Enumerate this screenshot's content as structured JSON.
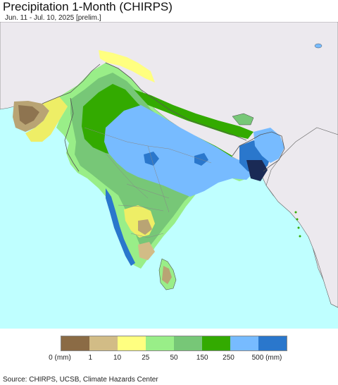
{
  "header": {
    "title": "Precipitation 1-Month (CHIRPS)",
    "subtitle": "Jun. 11 - Jul. 10, 2025 [prelim.]"
  },
  "map": {
    "ocean_color": "#bfffff",
    "land_outside_color": "#ece9ee",
    "border_color": "#555555"
  },
  "legend": {
    "swatches": [
      "#8b6b45",
      "#d2bc86",
      "#ffff80",
      "#99ee88",
      "#77c777",
      "#33aa00",
      "#77bbff",
      "#2a77cc"
    ],
    "labels": [
      "0 (mm)",
      "1",
      "10",
      "25",
      "50",
      "150",
      "250",
      "500 (mm)"
    ]
  },
  "footer": {
    "source": "Source: CHIRPS, UCSB, Climate Hazards Center"
  }
}
